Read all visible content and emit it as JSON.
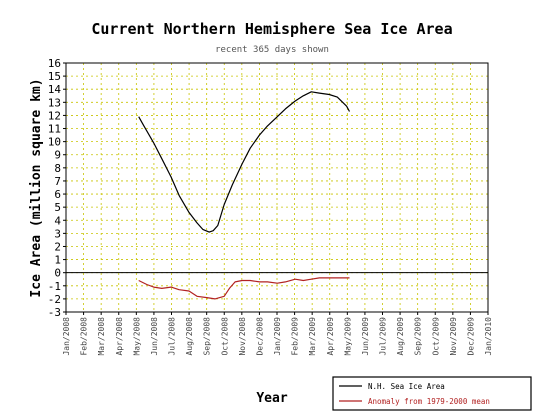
{
  "chart_data": {
    "type": "line",
    "title": "Current Northern Hemisphere Sea Ice Area",
    "subtitle": "recent 365 days shown",
    "xlabel": "Year",
    "ylabel": "Ice Area (million square km)",
    "ylim": [
      -3,
      16
    ],
    "yticks": [
      "-3",
      "-2",
      "-1",
      "0",
      "1",
      "2",
      "3",
      "4",
      "5",
      "6",
      "7",
      "8",
      "9",
      "10",
      "11",
      "12",
      "13",
      "14",
      "15",
      "16"
    ],
    "xticks": [
      "Jan/2008",
      "Feb/2008",
      "Mar/2008",
      "Apr/2008",
      "May/2008",
      "Jun/2008",
      "Jul/2008",
      "Aug/2008",
      "Sep/2008",
      "Oct/2008",
      "Nov/2008",
      "Dec/2008",
      "Jan/2009",
      "Feb/2009",
      "Mar/2009",
      "Apr/2009",
      "May/2009",
      "Jun/2009",
      "Jul/2009",
      "Aug/2009",
      "Sep/2009",
      "Oct/2009",
      "Nov/2009",
      "Dec/2009",
      "Jan/2010"
    ],
    "xlim": [
      "2008-01-01",
      "2010-01-01"
    ],
    "grid": true,
    "legend_position": "bottom-right",
    "series": [
      {
        "name": "N.H. Sea Ice Area",
        "color": "#000000",
        "x": [
          "2008-05-06",
          "2008-05-15",
          "2008-06-01",
          "2008-06-15",
          "2008-07-01",
          "2008-07-15",
          "2008-08-01",
          "2008-08-15",
          "2008-08-25",
          "2008-09-05",
          "2008-09-12",
          "2008-09-20",
          "2008-10-01",
          "2008-10-15",
          "2008-11-01",
          "2008-11-15",
          "2008-12-01",
          "2008-12-15",
          "2009-01-01",
          "2009-01-15",
          "2009-02-01",
          "2009-02-15",
          "2009-03-01",
          "2009-03-15",
          "2009-04-01",
          "2009-04-15",
          "2009-05-01",
          "2009-05-06"
        ],
        "values": [
          11.9,
          11.2,
          9.9,
          8.7,
          7.3,
          5.9,
          4.6,
          3.8,
          3.3,
          3.1,
          3.2,
          3.6,
          5.2,
          6.7,
          8.3,
          9.5,
          10.5,
          11.2,
          11.9,
          12.5,
          13.1,
          13.5,
          13.8,
          13.7,
          13.6,
          13.4,
          12.7,
          12.3
        ]
      },
      {
        "name": "Anomaly from 1979-2000 mean",
        "color": "#b22222",
        "x": [
          "2008-05-06",
          "2008-05-20",
          "2008-06-01",
          "2008-06-15",
          "2008-07-01",
          "2008-07-15",
          "2008-08-01",
          "2008-08-15",
          "2008-09-01",
          "2008-09-15",
          "2008-10-01",
          "2008-10-10",
          "2008-10-20",
          "2008-11-01",
          "2008-11-15",
          "2008-12-01",
          "2008-12-15",
          "2009-01-01",
          "2009-01-15",
          "2009-02-01",
          "2009-02-15",
          "2009-03-01",
          "2009-03-15",
          "2009-04-01",
          "2009-04-15",
          "2009-05-06"
        ],
        "values": [
          -0.6,
          -0.9,
          -1.1,
          -1.2,
          -1.1,
          -1.3,
          -1.4,
          -1.8,
          -1.9,
          -2.0,
          -1.8,
          -1.2,
          -0.7,
          -0.6,
          -0.6,
          -0.7,
          -0.7,
          -0.8,
          -0.7,
          -0.5,
          -0.6,
          -0.5,
          -0.4,
          -0.4,
          -0.4,
          -0.4
        ]
      }
    ]
  }
}
